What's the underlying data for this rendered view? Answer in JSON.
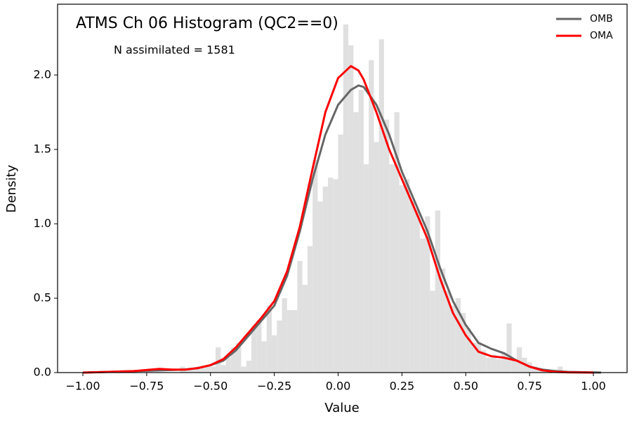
{
  "chart_data": {
    "type": "histogram",
    "title": "ATMS Ch 06 Histogram (QC2==0)",
    "annotation": "N assimilated = 1581",
    "xlabel": "Value",
    "ylabel": "Density",
    "xlim": [
      -1.099,
      1.132
    ],
    "ylim": [
      0,
      2.476
    ],
    "xticks": [
      {
        "value": -1.0,
        "label": "−1.00"
      },
      {
        "value": -0.75,
        "label": "−0.75"
      },
      {
        "value": -0.5,
        "label": "−0.50"
      },
      {
        "value": -0.25,
        "label": "−0.25"
      },
      {
        "value": 0.0,
        "label": "0.00"
      },
      {
        "value": 0.25,
        "label": "0.25"
      },
      {
        "value": 0.5,
        "label": "0.50"
      },
      {
        "value": 0.75,
        "label": "0.75"
      },
      {
        "value": 1.0,
        "label": "1.00"
      }
    ],
    "yticks": [
      {
        "value": 0.0,
        "label": "0.0"
      },
      {
        "value": 0.5,
        "label": "0.5"
      },
      {
        "value": 1.0,
        "label": "1.0"
      },
      {
        "value": 1.5,
        "label": "1.5"
      },
      {
        "value": 2.0,
        "label": "2.0"
      }
    ],
    "color": "#e0e0e0",
    "bins": [
      -0.62,
      -0.6,
      -0.58,
      -0.56,
      -0.54,
      -0.52,
      -0.5,
      -0.48,
      -0.46,
      -0.44,
      -0.42,
      -0.4,
      -0.38,
      -0.36,
      -0.34,
      -0.32,
      -0.3,
      -0.28,
      -0.26,
      -0.24,
      -0.22,
      -0.2,
      -0.18,
      -0.16,
      -0.14,
      -0.12,
      -0.1,
      -0.08,
      -0.06,
      -0.04,
      -0.02,
      0.0,
      0.02,
      0.04,
      0.06,
      0.08,
      0.1,
      0.12,
      0.14,
      0.16,
      0.18,
      0.2,
      0.22,
      0.24,
      0.26,
      0.28,
      0.3,
      0.32,
      0.34,
      0.36,
      0.38,
      0.4,
      0.42,
      0.44,
      0.46,
      0.48,
      0.5,
      0.52,
      0.54,
      0.56,
      0.58,
      0.6,
      0.62,
      0.64,
      0.66,
      0.68,
      0.7,
      0.72,
      0.74,
      0.76,
      0.78,
      0.8,
      0.82,
      0.84,
      0.86,
      0.88
    ],
    "counts": [
      0.04,
      0.03,
      0.03,
      0.04,
      0.03,
      0.04,
      0.04,
      0.17,
      0.05,
      0.1,
      0.17,
      0.2,
      0.04,
      0.08,
      0.3,
      0.35,
      0.21,
      0.45,
      0.25,
      0.35,
      0.5,
      0.42,
      0.42,
      0.75,
      0.59,
      0.85,
      1.43,
      1.15,
      1.25,
      1.31,
      1.3,
      1.6,
      2.34,
      2.2,
      1.75,
      1.9,
      1.4,
      2.1,
      1.55,
      2.24,
      1.7,
      1.4,
      1.75,
      1.26,
      1.3,
      1.15,
      1.1,
      0.9,
      1.05,
      0.55,
      1.09,
      0.7,
      0.55,
      0.45,
      0.5,
      0.4,
      0.3,
      0.2,
      0.2,
      0.15,
      0.1,
      0.12,
      0.09,
      0.13,
      0.33,
      0.08,
      0.17,
      0.1,
      0.07,
      0.04,
      0.03,
      0.02,
      0.02,
      0.02,
      0.04
    ],
    "legend": "upper right",
    "series": [
      {
        "name": "OMB",
        "color": "#666666",
        "x": [
          -1.0,
          -0.9,
          -0.8,
          -0.7,
          -0.6,
          -0.55,
          -0.5,
          -0.45,
          -0.4,
          -0.35,
          -0.3,
          -0.25,
          -0.2,
          -0.15,
          -0.1,
          -0.05,
          0.0,
          0.05,
          0.08,
          0.1,
          0.15,
          0.2,
          0.25,
          0.3,
          0.35,
          0.4,
          0.45,
          0.5,
          0.55,
          0.6,
          0.65,
          0.7,
          0.75,
          0.8,
          0.85,
          0.9,
          1.0,
          1.03
        ],
        "values": [
          0.0,
          0.005,
          0.01,
          0.015,
          0.02,
          0.03,
          0.05,
          0.08,
          0.15,
          0.25,
          0.35,
          0.45,
          0.65,
          0.95,
          1.3,
          1.6,
          1.8,
          1.9,
          1.93,
          1.92,
          1.8,
          1.6,
          1.35,
          1.15,
          0.95,
          0.7,
          0.48,
          0.32,
          0.2,
          0.16,
          0.13,
          0.08,
          0.04,
          0.02,
          0.01,
          0.005,
          0.001,
          0.0
        ]
      },
      {
        "name": "OMA",
        "color": "#ff0000",
        "x": [
          -1.0,
          -0.9,
          -0.8,
          -0.7,
          -0.65,
          -0.6,
          -0.55,
          -0.5,
          -0.45,
          -0.4,
          -0.35,
          -0.3,
          -0.25,
          -0.2,
          -0.15,
          -0.1,
          -0.05,
          0.0,
          0.05,
          0.08,
          0.1,
          0.15,
          0.2,
          0.25,
          0.3,
          0.35,
          0.4,
          0.45,
          0.5,
          0.55,
          0.6,
          0.65,
          0.7,
          0.75,
          0.8,
          0.85,
          0.9,
          1.0
        ],
        "values": [
          0.0,
          0.005,
          0.01,
          0.025,
          0.02,
          0.02,
          0.03,
          0.05,
          0.09,
          0.17,
          0.27,
          0.37,
          0.48,
          0.68,
          0.98,
          1.37,
          1.75,
          1.98,
          2.06,
          2.03,
          1.97,
          1.75,
          1.5,
          1.3,
          1.1,
          0.9,
          0.63,
          0.4,
          0.25,
          0.14,
          0.11,
          0.1,
          0.08,
          0.04,
          0.015,
          0.005,
          0.002,
          0.0
        ]
      }
    ]
  }
}
